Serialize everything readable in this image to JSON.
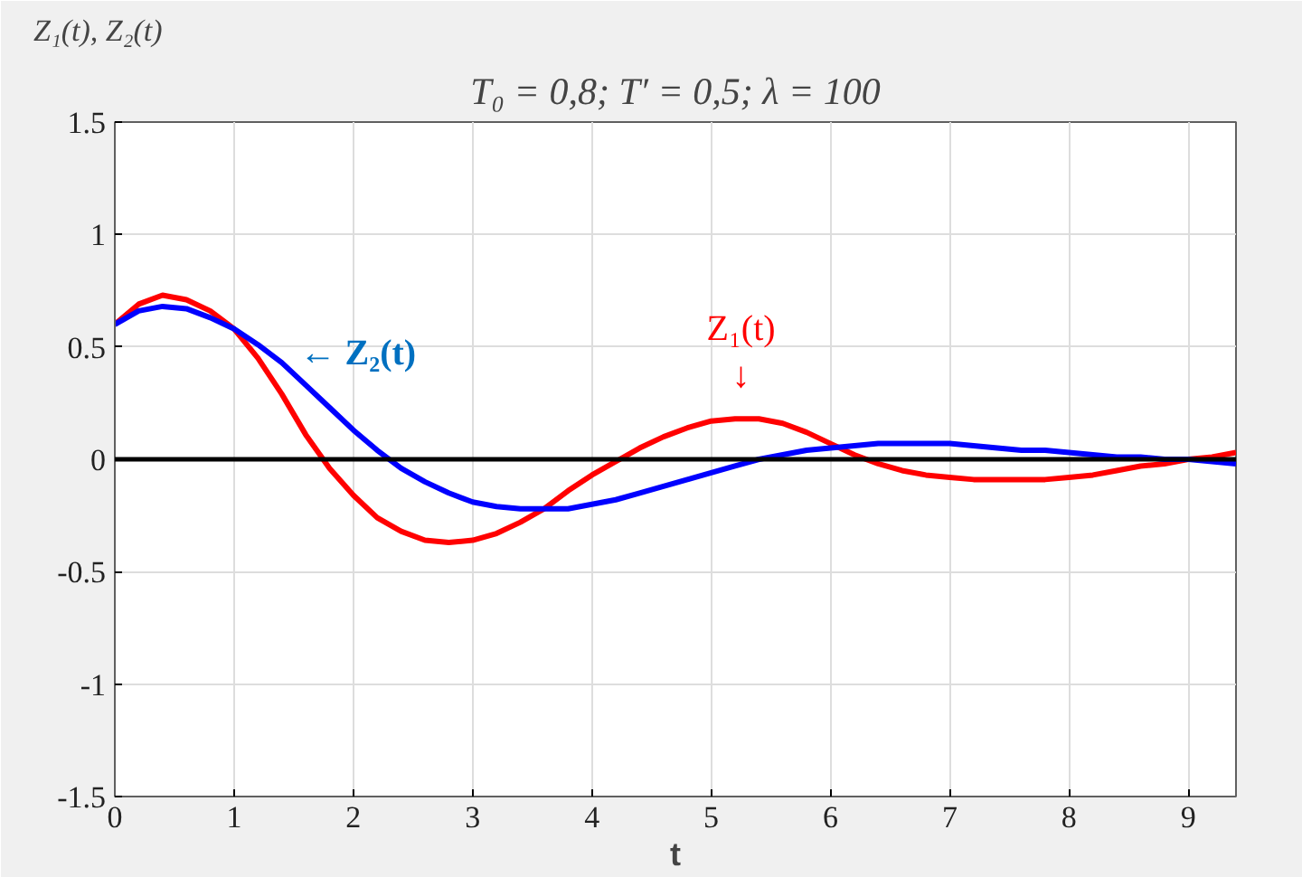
{
  "chart_data": {
    "type": "line",
    "title": "T₀ = 0,8; T′ = 0,5; λ = 100",
    "ylabel": "Z₁(t), Z₂(t)",
    "xlabel": "t",
    "x": [
      0,
      0.2,
      0.4,
      0.6,
      0.8,
      1.0,
      1.2,
      1.4,
      1.6,
      1.8,
      2.0,
      2.2,
      2.4,
      2.6,
      2.8,
      3.0,
      3.2,
      3.4,
      3.6,
      3.8,
      4.0,
      4.2,
      4.4,
      4.6,
      4.8,
      5.0,
      5.2,
      5.4,
      5.6,
      5.8,
      6.0,
      6.2,
      6.4,
      6.6,
      6.8,
      7.0,
      7.2,
      7.4,
      7.6,
      7.8,
      8.0,
      8.2,
      8.4,
      8.6,
      8.8,
      9.0,
      9.2,
      9.4
    ],
    "series": [
      {
        "color": "#ff0000",
        "values": [
          0.6,
          0.69,
          0.73,
          0.71,
          0.66,
          0.58,
          0.45,
          0.29,
          0.11,
          -0.04,
          -0.16,
          -0.26,
          -0.32,
          -0.36,
          -0.37,
          -0.36,
          -0.33,
          -0.28,
          -0.22,
          -0.14,
          -0.07,
          -0.01,
          0.05,
          0.1,
          0.14,
          0.17,
          0.18,
          0.18,
          0.16,
          0.12,
          0.07,
          0.02,
          -0.02,
          -0.05,
          -0.07,
          -0.08,
          -0.09,
          -0.09,
          -0.09,
          -0.09,
          -0.08,
          -0.07,
          -0.05,
          -0.03,
          -0.02,
          0.0,
          0.01,
          0.03
        ]
      },
      {
        "color": "#0000ff",
        "values": [
          0.6,
          0.66,
          0.68,
          0.67,
          0.63,
          0.58,
          0.51,
          0.43,
          0.33,
          0.23,
          0.13,
          0.04,
          -0.04,
          -0.1,
          -0.15,
          -0.19,
          -0.21,
          -0.22,
          -0.22,
          -0.22,
          -0.2,
          -0.18,
          -0.15,
          -0.12,
          -0.09,
          -0.06,
          -0.03,
          0.0,
          0.02,
          0.04,
          0.05,
          0.06,
          0.07,
          0.07,
          0.07,
          0.07,
          0.06,
          0.05,
          0.04,
          0.04,
          0.03,
          0.02,
          0.01,
          0.01,
          0.0,
          0.0,
          -0.01,
          -0.02
        ]
      }
    ],
    "annotations": [
      "Z₁(t)\n↓",
      "← Z₂(t)"
    ],
    "ref_lines": [
      {
        "axis": "y",
        "value": 0,
        "color": "#000000"
      }
    ],
    "xlim": [
      0,
      9.4
    ],
    "ylim": [
      -1.5,
      1.5
    ],
    "xticks": [
      0,
      1,
      2,
      3,
      4,
      5,
      6,
      7,
      8,
      9
    ],
    "yticks": [
      -1.5,
      -1,
      -0.5,
      0,
      0.5,
      1,
      1.5
    ],
    "grid": true
  }
}
